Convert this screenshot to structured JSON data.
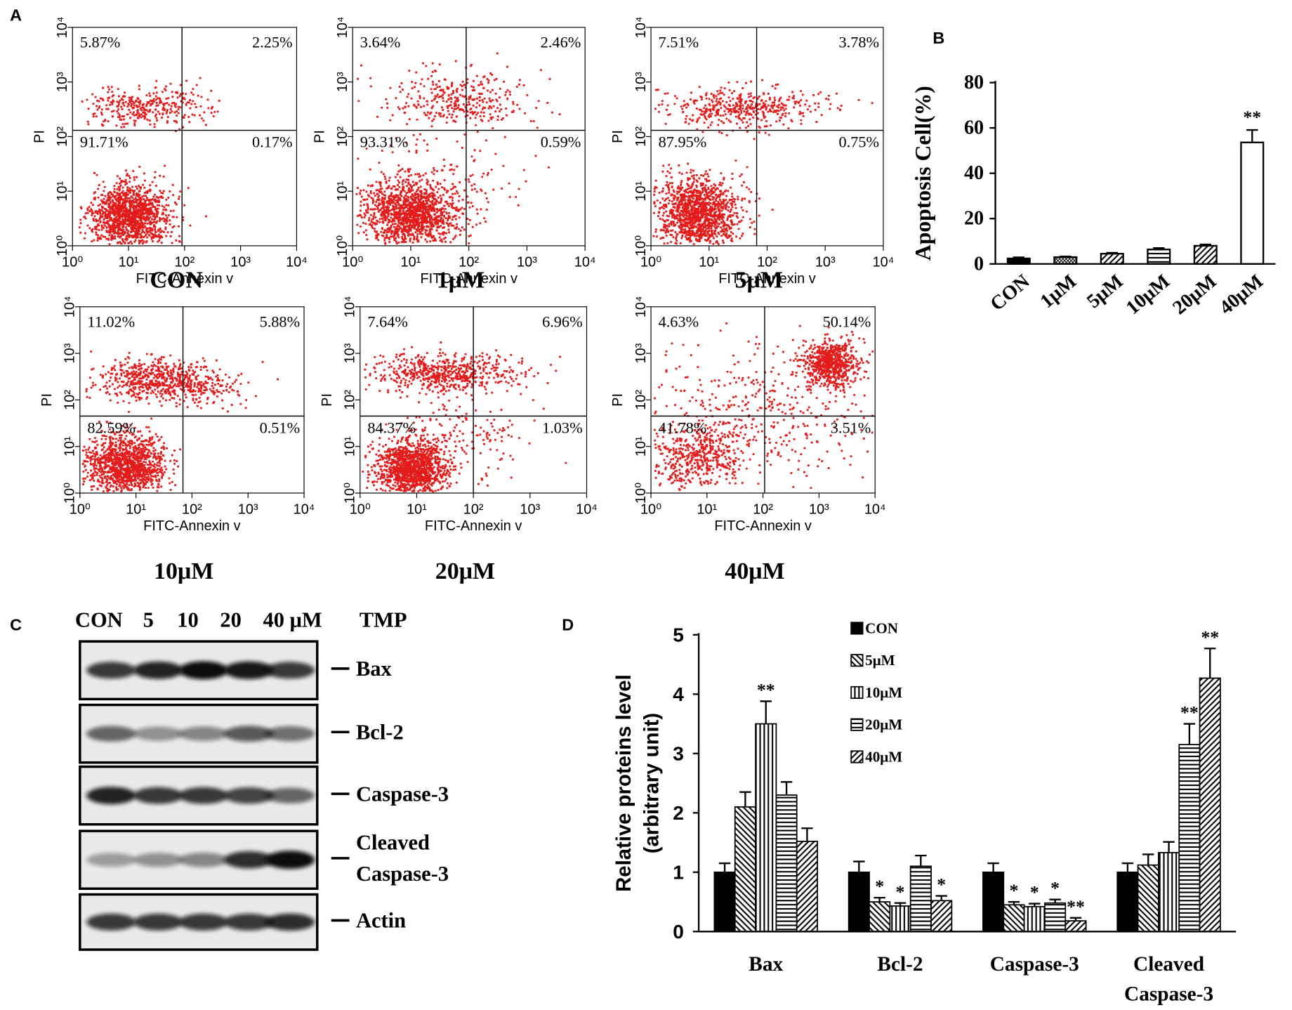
{
  "panel_labels": [
    "A",
    "B",
    "C",
    "D"
  ],
  "chart_data": [
    {
      "type": "flow_cytometry",
      "title": "CON",
      "xlabel": "FITC-Annexin v",
      "ylabel": "PI",
      "color": "#e31b1b",
      "log": true,
      "xlim": [
        1,
        10000
      ],
      "ylim": [
        1,
        10000
      ],
      "xticks": [
        {
          "value": 1,
          "label": "10⁰"
        },
        {
          "value": 10,
          "label": "10¹"
        },
        {
          "value": 100,
          "label": "10²"
        },
        {
          "value": 1000,
          "label": "10³"
        },
        {
          "value": 10000,
          "label": "10⁴"
        }
      ],
      "yticks": [
        {
          "value": 1,
          "label": "10⁰"
        },
        {
          "value": 10,
          "label": "10¹"
        },
        {
          "value": 100,
          "label": "10²"
        },
        {
          "value": 1000,
          "label": "10³"
        },
        {
          "value": 10000,
          "label": "10⁴"
        }
      ],
      "gate": {
        "x": 90,
        "y": 130
      },
      "quadrants": {
        "values": [
          5.87,
          2.25,
          91.71,
          0.17
        ],
        "value_labels": [
          "5.87%",
          "2.25%",
          "91.71%",
          "0.17%"
        ]
      }
    },
    {
      "type": "flow_cytometry",
      "title": "1μM",
      "xlabel": "FITC-Annexin v",
      "ylabel": "PI",
      "color": "#e31b1b",
      "log": true,
      "xlim": [
        1,
        10000
      ],
      "ylim": [
        1,
        10000
      ],
      "xticks": [
        {
          "value": 1,
          "label": "10⁰"
        },
        {
          "value": 10,
          "label": "10¹"
        },
        {
          "value": 100,
          "label": "10²"
        },
        {
          "value": 1000,
          "label": "10³"
        },
        {
          "value": 10000,
          "label": "10⁴"
        }
      ],
      "yticks": [
        {
          "value": 1,
          "label": "10⁰"
        },
        {
          "value": 10,
          "label": "10¹"
        },
        {
          "value": 100,
          "label": "10²"
        },
        {
          "value": 1000,
          "label": "10³"
        },
        {
          "value": 10000,
          "label": "10⁴"
        }
      ],
      "gate": {
        "x": 90,
        "y": 130
      },
      "quadrants": {
        "values": [
          3.64,
          2.46,
          93.31,
          0.59
        ],
        "value_labels": [
          "3.64%",
          "2.46%",
          "93.31%",
          "0.59%"
        ]
      }
    },
    {
      "type": "flow_cytometry",
      "title": "5μM",
      "xlabel": "FITC-Annexin v",
      "ylabel": "PI",
      "color": "#e31b1b",
      "log": true,
      "xlim": [
        1,
        10000
      ],
      "ylim": [
        1,
        10000
      ],
      "xticks": [
        {
          "value": 1,
          "label": "10⁰"
        },
        {
          "value": 10,
          "label": "10¹"
        },
        {
          "value": 100,
          "label": "10²"
        },
        {
          "value": 1000,
          "label": "10³"
        },
        {
          "value": 10000,
          "label": "10⁴"
        }
      ],
      "yticks": [
        {
          "value": 1,
          "label": "10⁰"
        },
        {
          "value": 10,
          "label": "10¹"
        },
        {
          "value": 100,
          "label": "10²"
        },
        {
          "value": 1000,
          "label": "10³"
        },
        {
          "value": 10000,
          "label": "10⁴"
        }
      ],
      "gate": {
        "x": 66,
        "y": 130
      },
      "quadrants": {
        "values": [
          7.51,
          3.78,
          87.95,
          0.75
        ],
        "value_labels": [
          "7.51%",
          "3.78%",
          "87.95%",
          "0.75%"
        ]
      }
    },
    {
      "type": "flow_cytometry",
      "title": "10μM",
      "xlabel": "FITC-Annexin v",
      "ylabel": "PI",
      "color": "#e31b1b",
      "log": true,
      "xlim": [
        1,
        10000
      ],
      "ylim": [
        1,
        10000
      ],
      "xticks": [
        {
          "value": 1,
          "label": "10⁰"
        },
        {
          "value": 10,
          "label": "10¹"
        },
        {
          "value": 100,
          "label": "10²"
        },
        {
          "value": 1000,
          "label": "10³"
        },
        {
          "value": 10000,
          "label": "10⁴"
        }
      ],
      "yticks": [
        {
          "value": 1,
          "label": "10⁰"
        },
        {
          "value": 10,
          "label": "10¹"
        },
        {
          "value": 100,
          "label": "10²"
        },
        {
          "value": 1000,
          "label": "10³"
        },
        {
          "value": 10000,
          "label": "10⁴"
        }
      ],
      "gate": {
        "x": 69,
        "y": 45
      },
      "quadrants": {
        "values": [
          11.02,
          5.88,
          82.59,
          0.51
        ],
        "value_labels": [
          "11.02%",
          "5.88%",
          "82.59%",
          "0.51%"
        ]
      }
    },
    {
      "type": "flow_cytometry",
      "title": "20μM",
      "xlabel": "FITC-Annexin v",
      "ylabel": "PI",
      "color": "#e31b1b",
      "log": true,
      "xlim": [
        1,
        10000
      ],
      "ylim": [
        1,
        10000
      ],
      "xticks": [
        {
          "value": 1,
          "label": "10⁰"
        },
        {
          "value": 10,
          "label": "10¹"
        },
        {
          "value": 100,
          "label": "10²"
        },
        {
          "value": 1000,
          "label": "10³"
        },
        {
          "value": 10000,
          "label": "10⁴"
        }
      ],
      "yticks": [
        {
          "value": 1,
          "label": "10⁰"
        },
        {
          "value": 10,
          "label": "10¹"
        },
        {
          "value": 100,
          "label": "10²"
        },
        {
          "value": 1000,
          "label": "10³"
        },
        {
          "value": 10000,
          "label": "10⁴"
        }
      ],
      "gate": {
        "x": 100,
        "y": 45
      },
      "quadrants": {
        "values": [
          7.64,
          6.96,
          84.37,
          1.03
        ],
        "value_labels": [
          "7.64%",
          "6.96%",
          "84.37%",
          "1.03%"
        ]
      }
    },
    {
      "type": "flow_cytometry",
      "title": "40μM",
      "xlabel": "FITC-Annexin v",
      "ylabel": "PI",
      "color": "#e31b1b",
      "log": true,
      "xlim": [
        1,
        10000
      ],
      "ylim": [
        1,
        10000
      ],
      "xticks": [
        {
          "value": 1,
          "label": "10⁰"
        },
        {
          "value": 10,
          "label": "10¹"
        },
        {
          "value": 100,
          "label": "10²"
        },
        {
          "value": 1000,
          "label": "10³"
        },
        {
          "value": 10000,
          "label": "10⁴"
        }
      ],
      "yticks": [
        {
          "value": 1,
          "label": "10⁰"
        },
        {
          "value": 10,
          "label": "10¹"
        },
        {
          "value": 100,
          "label": "10²"
        },
        {
          "value": 1000,
          "label": "10³"
        },
        {
          "value": 10000,
          "label": "10⁴"
        }
      ],
      "gate": {
        "x": 107,
        "y": 45
      },
      "quadrants": {
        "values": [
          4.63,
          50.14,
          41.78,
          3.51
        ],
        "value_labels": [
          "4.63%",
          "50.14%",
          "41.78%",
          "3.51%"
        ]
      }
    },
    {
      "type": "bar",
      "ylabel": "Apoptosis Cell(%)",
      "color": "#000000",
      "categories": [
        "CON",
        "1μM",
        "5μM",
        "10μM",
        "20μM",
        "40μM"
      ],
      "values": [
        2.4,
        3.0,
        4.5,
        6.4,
        8.0,
        53.6
      ],
      "errors": [
        0.5,
        0.3,
        0.4,
        0.6,
        0.6,
        5.5
      ],
      "patterns": [
        "solid",
        "crosshatch",
        "diagonal",
        "horizontal",
        "diagonal",
        "none"
      ],
      "annotations": [
        null,
        null,
        null,
        null,
        null,
        "**"
      ],
      "ylim": [
        0,
        80
      ],
      "yticks": [
        0,
        20,
        40,
        60,
        80
      ]
    },
    {
      "type": "grouped_bar",
      "ylabel": [
        "Relative proteins level",
        "(arbitrary unit)"
      ],
      "color": "#000000",
      "categories": [
        "Bax",
        "Bcl-2",
        "Caspase-3",
        [
          "Cleaved",
          "Caspase-3"
        ]
      ],
      "series": [
        {
          "name": "CON",
          "pattern": "solid",
          "values": [
            1.0,
            1.0,
            1.0,
            1.0
          ],
          "errors": [
            0.15,
            0.18,
            0.15,
            0.15
          ],
          "annotations": [
            null,
            null,
            null,
            null
          ]
        },
        {
          "name": "5μM",
          "pattern": "backdiagonal",
          "values": [
            2.1,
            0.5,
            0.45,
            1.12
          ],
          "errors": [
            0.25,
            0.07,
            0.05,
            0.18
          ],
          "annotations": [
            null,
            "*",
            "*",
            null
          ]
        },
        {
          "name": "10μM",
          "pattern": "vertical",
          "values": [
            3.5,
            0.43,
            0.42,
            1.33
          ],
          "errors": [
            0.38,
            0.05,
            0.05,
            0.18
          ],
          "annotations": [
            "**",
            "*",
            "*",
            null
          ]
        },
        {
          "name": "20μM",
          "pattern": "horizontal",
          "values": [
            2.3,
            1.1,
            0.48,
            3.15
          ],
          "errors": [
            0.22,
            0.18,
            0.06,
            0.35
          ],
          "annotations": [
            null,
            null,
            "*",
            "**"
          ]
        },
        {
          "name": "40μM",
          "pattern": "diagonal",
          "values": [
            1.52,
            0.52,
            0.18,
            4.27
          ],
          "errors": [
            0.22,
            0.08,
            0.05,
            0.5
          ],
          "annotations": [
            null,
            "*",
            "**",
            "**"
          ]
        }
      ],
      "ylim": [
        0,
        5
      ],
      "yticks": [
        0,
        1,
        2,
        3,
        4,
        5
      ]
    }
  ],
  "blot": {
    "lanes": [
      "CON",
      "5",
      "10",
      "20",
      "40 μM"
    ],
    "treatment": "TMP",
    "proteins": [
      [
        "Bax"
      ],
      [
        "Bcl-2"
      ],
      [
        "Caspase-3"
      ],
      [
        "Cleaved",
        "Caspase-3"
      ],
      [
        "Actin"
      ]
    ]
  }
}
